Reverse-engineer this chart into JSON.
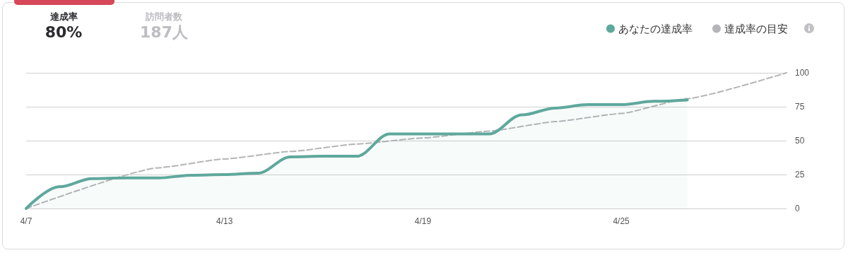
{
  "chart_data": {
    "type": "line",
    "annotations": [
      "達成率",
      "80%",
      "訪問者数",
      "187人"
    ],
    "xlim": [
      "--04-07",
      "--04-30"
    ],
    "xticks": [
      {
        "value": "--04-07",
        "label": "4/7"
      },
      {
        "value": "--04-13",
        "label": "4/13"
      },
      {
        "value": "--04-19",
        "label": "4/19"
      },
      {
        "value": "--04-25",
        "label": "4/25"
      }
    ],
    "ylim": [
      0,
      100
    ],
    "yticks": [
      0,
      25,
      50,
      75,
      100
    ],
    "grid": "y",
    "legend": "top right",
    "marker": "none",
    "series": [
      {
        "name": "あなたの達成率",
        "type": "area",
        "color": "#5fa89d",
        "line_style": "solid",
        "x": [
          "--04-07",
          "--04-08",
          "--04-09",
          "--04-10",
          "--04-11",
          "--04-12",
          "--04-13",
          "--04-14",
          "--04-15",
          "--04-16",
          "--04-17",
          "--04-18",
          "--04-19",
          "--04-20",
          "--04-21",
          "--04-22",
          "--04-23",
          "--04-24",
          "--04-25",
          "--04-26",
          "--04-27"
        ],
        "values": [
          0,
          16,
          22,
          22.5,
          22.5,
          24.5,
          25,
          26,
          38,
          38.5,
          38.5,
          55,
          55,
          55,
          55,
          69,
          74,
          76.5,
          76.5,
          79,
          80
        ]
      },
      {
        "name": "達成率の目安",
        "type": "line",
        "color": "#b5b5b8",
        "line_style": "dashed",
        "x": [
          "--04-07",
          "--04-11",
          "--04-13",
          "--04-15",
          "--04-17",
          "--04-19",
          "--04-21",
          "--04-23",
          "--04-25",
          "--04-27",
          "--04-30"
        ],
        "values": [
          0,
          30,
          36.5,
          42,
          47.5,
          52,
          57,
          64,
          70,
          81,
          100
        ]
      }
    ]
  }
}
